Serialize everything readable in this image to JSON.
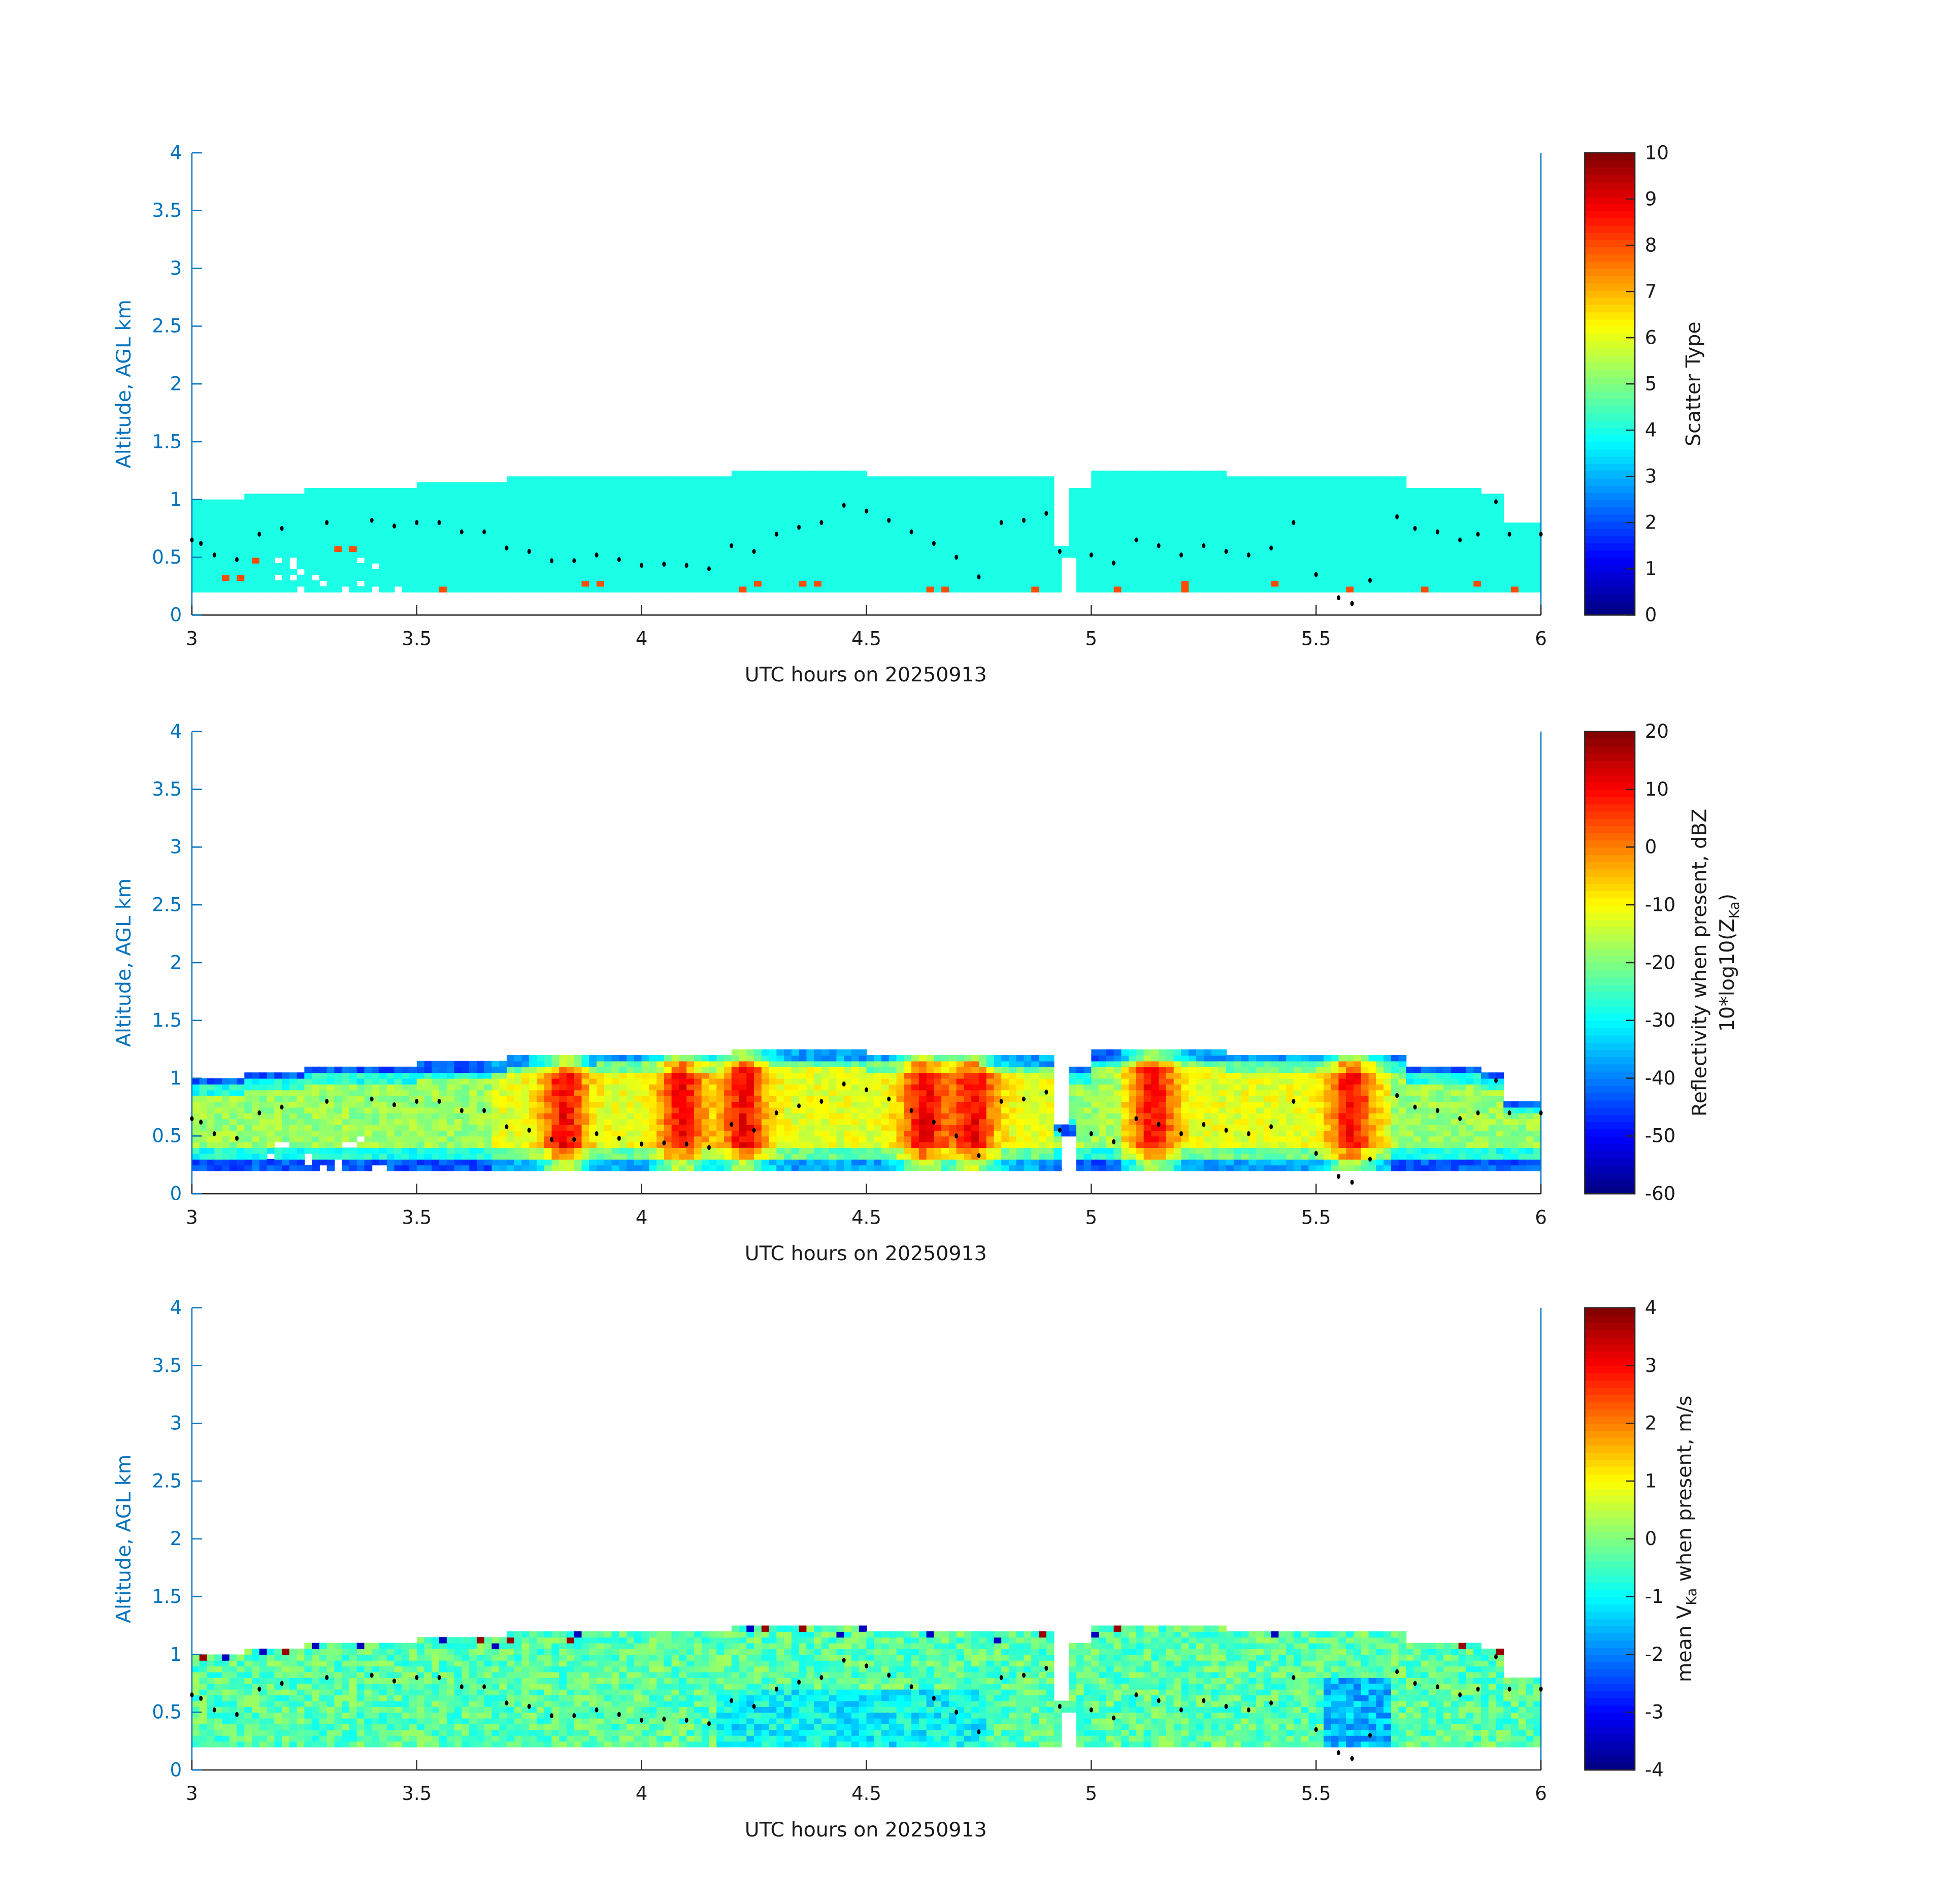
{
  "chart_data": {
    "type": "heatmap",
    "x": {
      "label": "UTC hours on 20250913",
      "lim": [
        3,
        6
      ],
      "ticks": [
        "3",
        "3.5",
        "4",
        "4.5",
        "5",
        "5.5",
        "6"
      ],
      "tick_values": [
        3,
        3.5,
        4,
        4.5,
        5,
        5.5,
        6
      ]
    },
    "y": {
      "label": "Altitude, AGL km",
      "lim": [
        0,
        4
      ],
      "ticks": [
        "0",
        "0.5",
        "1",
        "1.5",
        "2",
        "2.5",
        "3",
        "3.5",
        "4"
      ],
      "tick_values": [
        0,
        0.5,
        1,
        1.5,
        2,
        2.5,
        3,
        3.5,
        4
      ]
    },
    "cloud_base_km": 0.2,
    "cloud_top_km": {
      "t": [
        3.0,
        3.12,
        3.25,
        3.5,
        3.7,
        3.9,
        4.2,
        4.5,
        4.75,
        4.92,
        4.95,
        5.0,
        5.3,
        5.7,
        5.87,
        5.92,
        6.0
      ],
      "h": [
        1.0,
        1.05,
        1.1,
        1.12,
        1.17,
        1.2,
        1.22,
        1.2,
        1.17,
        0.6,
        1.1,
        1.22,
        1.2,
        1.1,
        1.05,
        0.8,
        0.8
      ]
    },
    "overlay_points": {
      "name": "black dots",
      "t": [
        3.0,
        3.02,
        3.05,
        3.1,
        3.15,
        3.2,
        3.3,
        3.4,
        3.45,
        3.5,
        3.55,
        3.6,
        3.65,
        3.7,
        3.75,
        3.8,
        3.85,
        3.9,
        3.95,
        4.0,
        4.05,
        4.1,
        4.15,
        4.2,
        4.25,
        4.3,
        4.35,
        4.4,
        4.45,
        4.5,
        4.55,
        4.6,
        4.65,
        4.7,
        4.75,
        4.8,
        4.85,
        4.9,
        4.93,
        5.0,
        5.05,
        5.1,
        5.15,
        5.2,
        5.25,
        5.3,
        5.35,
        5.4,
        5.45,
        5.5,
        5.55,
        5.58,
        5.62,
        5.68,
        5.72,
        5.77,
        5.82,
        5.86,
        5.9,
        5.93,
        6.0
      ],
      "h": [
        0.65,
        0.62,
        0.52,
        0.48,
        0.7,
        0.75,
        0.8,
        0.82,
        0.77,
        0.8,
        0.8,
        0.72,
        0.72,
        0.58,
        0.55,
        0.47,
        0.47,
        0.52,
        0.48,
        0.43,
        0.44,
        0.43,
        0.4,
        0.6,
        0.55,
        0.7,
        0.76,
        0.8,
        0.95,
        0.9,
        0.82,
        0.72,
        0.62,
        0.5,
        0.33,
        0.8,
        0.82,
        0.88,
        0.55,
        0.52,
        0.45,
        0.65,
        0.6,
        0.52,
        0.6,
        0.55,
        0.52,
        0.58,
        0.8,
        0.35,
        0.15,
        0.1,
        0.3,
        0.85,
        0.75,
        0.72,
        0.65,
        0.7,
        0.98,
        0.7,
        0.7
      ]
    },
    "panels": [
      {
        "name": "scatter-type",
        "colorbar_label": "Scatter Type",
        "colorbar_label2": "",
        "clim": [
          0,
          10
        ],
        "cticks": [
          "0",
          "1",
          "2",
          "3",
          "4",
          "5",
          "6",
          "7",
          "8",
          "9",
          "10"
        ],
        "ctick_values": [
          0,
          1,
          2,
          3,
          4,
          5,
          6,
          7,
          8,
          9,
          10
        ],
        "dominant_value": 4,
        "secondary_value": 8
      },
      {
        "name": "reflectivity",
        "colorbar_label": "Reflectivity when present, dBZ",
        "colorbar_label2": "10*log10(Z",
        "colorbar_sub": "Ka",
        "colorbar_close": ")",
        "clim": [
          -60,
          20
        ],
        "cticks": [
          "-60",
          "-50",
          "-40",
          "-30",
          "-20",
          "-10",
          "0",
          "10",
          "20"
        ],
        "ctick_values": [
          -60,
          -50,
          -40,
          -30,
          -20,
          -10,
          0,
          10,
          20
        ],
        "core_peaks_t": [
          3.82,
          4.08,
          4.22,
          4.62,
          4.73,
          5.13,
          5.57
        ]
      },
      {
        "name": "velocity",
        "colorbar_label": "mean V",
        "colorbar_sub": "Ka",
        "colorbar_label_tail": " when present, m/s",
        "clim": [
          -4,
          4
        ],
        "cticks": [
          "-4",
          "-3",
          "-2",
          "-1",
          "0",
          "1",
          "2",
          "3",
          "4"
        ],
        "ctick_values": [
          -4,
          -3,
          -2,
          -1,
          0,
          1,
          2,
          3,
          4
        ],
        "typical_range": [
          -1.5,
          0.5
        ]
      }
    ]
  }
}
